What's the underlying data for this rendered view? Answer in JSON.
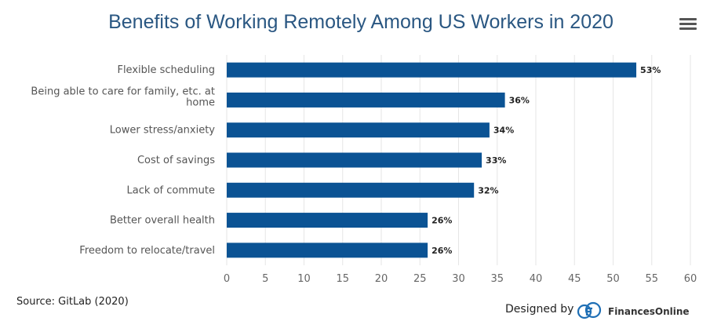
{
  "colors": {
    "bar": "#0b5394",
    "title": "#2a5782",
    "grid": "#e6e6e6"
  },
  "icons": {
    "menu": "hamburger-menu-icon",
    "brand": "financesonline-logo-icon"
  },
  "chart_data": {
    "type": "bar",
    "orientation": "horizontal",
    "title": "Benefits of Working Remotely Among US Workers in 2020",
    "categories": [
      [
        "Flexible scheduling"
      ],
      [
        "Being able to care for family, etc. at",
        "home"
      ],
      [
        "Lower stress/anxiety"
      ],
      [
        "Cost of savings"
      ],
      [
        "Lack of commute"
      ],
      [
        "Better overall health"
      ],
      [
        "Freedom to relocate/travel"
      ]
    ],
    "values": [
      53,
      36,
      34,
      33,
      32,
      26,
      26
    ],
    "data_labels": [
      "53%",
      "36%",
      "34%",
      "33%",
      "32%",
      "26%",
      "26%"
    ],
    "xlim": [
      0,
      60
    ],
    "xticks": [
      0,
      5,
      10,
      15,
      20,
      25,
      30,
      35,
      40,
      45,
      50,
      55,
      60
    ],
    "grid": true,
    "legend": "none"
  },
  "footer": {
    "source": "Source: GitLab (2020)",
    "designed_by": "Designed by",
    "brand": "FinancesOnline"
  }
}
